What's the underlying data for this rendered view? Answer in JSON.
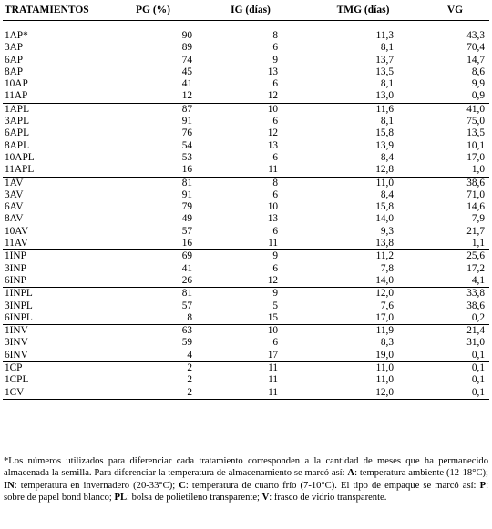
{
  "headers": [
    "TRATAMIENTOS",
    "PG (%)",
    "IG (días)",
    "TMG (días)",
    "VG"
  ],
  "groups": [
    [
      [
        "1AP*",
        "90",
        "8",
        "11,3",
        "43,3"
      ],
      [
        "3AP",
        "89",
        "6",
        "8,1",
        "70,4"
      ],
      [
        "6AP",
        "74",
        "9",
        "13,7",
        "14,7"
      ],
      [
        "8AP",
        "45",
        "13",
        "13,5",
        "8,6"
      ],
      [
        "10AP",
        "41",
        "6",
        "8,1",
        "9,9"
      ],
      [
        "11AP",
        "12",
        "12",
        "13,0",
        "0,9"
      ]
    ],
    [
      [
        "1APL",
        "87",
        "10",
        "11,6",
        "41,0"
      ],
      [
        "3APL",
        "91",
        "6",
        "8,1",
        "75,0"
      ],
      [
        "6APL",
        "76",
        "12",
        "15,8",
        "13,5"
      ],
      [
        "8APL",
        "54",
        "13",
        "13,9",
        "10,1"
      ],
      [
        "10APL",
        "53",
        "6",
        "8,4",
        "17,0"
      ],
      [
        "11APL",
        "16",
        "11",
        "12,8",
        "1,0"
      ]
    ],
    [
      [
        "1AV",
        "81",
        "8",
        "11,0",
        "38,6"
      ],
      [
        "3AV",
        "91",
        "6",
        "8,4",
        "71,0"
      ],
      [
        "6AV",
        "79",
        "10",
        "15,8",
        "14,6"
      ],
      [
        "8AV",
        "49",
        "13",
        "14,0",
        "7,9"
      ],
      [
        "10AV",
        "57",
        "6",
        "9,3",
        "21,7"
      ],
      [
        "11AV",
        "16",
        "11",
        "13,8",
        "1,1"
      ]
    ],
    [
      [
        "1INP",
        "69",
        "9",
        "11,2",
        "25,6"
      ],
      [
        "3INP",
        "41",
        "6",
        "7,8",
        "17,2"
      ],
      [
        "6INP",
        "26",
        "12",
        "14,0",
        "4,1"
      ]
    ],
    [
      [
        "1INPL",
        "81",
        "9",
        "12,0",
        "33,8"
      ],
      [
        "3INPL",
        "57",
        "5",
        "7,6",
        "38,6"
      ],
      [
        "6INPL",
        "8",
        "15",
        "17,0",
        "0,2"
      ]
    ],
    [
      [
        "1INV",
        "63",
        "10",
        "11,9",
        "21,4"
      ],
      [
        "3INV",
        "59",
        "6",
        "8,3",
        "31,0"
      ],
      [
        "6INV",
        "4",
        "17",
        "19,0",
        "0,1"
      ]
    ],
    [
      [
        "1CP",
        "2",
        "11",
        "11,0",
        "0,1"
      ],
      [
        "1CPL",
        "2",
        "11",
        "11,0",
        "0,1"
      ],
      [
        "1CV",
        "2",
        "11",
        "12,0",
        "0,1"
      ]
    ]
  ],
  "footnote": [
    {
      "t": "*Los números utilizados para diferenciar cada tratamiento corresponden a la cantidad de meses que ha permanecido almacenada la semilla.  Para diferenciar la temperatura de almacenamiento se marcó así:  ",
      "b": false
    },
    {
      "t": "A",
      "b": true
    },
    {
      "t": ": temperatura ambiente (12-18°C); ",
      "b": false
    },
    {
      "t": "IN",
      "b": true
    },
    {
      "t": ": temperatura en invernadero (20-33°C); ",
      "b": false
    },
    {
      "t": "C",
      "b": true
    },
    {
      "t": ": temperatura de cuarto frío (7-10°C).  El tipo de empaque se marcó así:  ",
      "b": false
    },
    {
      "t": "P",
      "b": true
    },
    {
      "t": ": sobre de papel bond blanco; ",
      "b": false
    },
    {
      "t": "PL",
      "b": true
    },
    {
      "t": ": bolsa de polietileno transparente; ",
      "b": false
    },
    {
      "t": "V",
      "b": true
    },
    {
      "t": ": frasco de vidrio transparente.",
      "b": false
    }
  ]
}
